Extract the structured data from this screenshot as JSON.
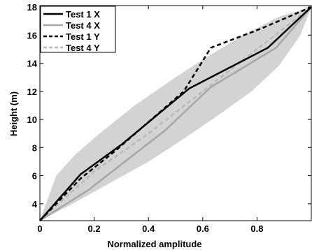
{
  "chart_data": {
    "type": "line",
    "xlabel": "Normalized amplitude",
    "ylabel": "Height (m)",
    "xlim": [
      0,
      1
    ],
    "ylim": [
      2.8,
      18.1
    ],
    "xticks": [
      0,
      0.2,
      0.4,
      0.6,
      0.8
    ],
    "xtick_labels": [
      "0",
      "0.2",
      "0.4",
      "0.6",
      "0.8"
    ],
    "yticks": [
      4,
      6,
      8,
      10,
      12,
      14,
      16,
      18
    ],
    "ytick_labels": [
      "4",
      "6",
      "8",
      "10",
      "12",
      "14",
      "16",
      "18"
    ],
    "grid": false,
    "legend_position": "top-left",
    "band": {
      "color": "#d3d3d3",
      "upper": [
        [
          0,
          2.8
        ],
        [
          0.06,
          6.0
        ],
        [
          0.13,
          7.5
        ],
        [
          0.22,
          9.0
        ],
        [
          0.35,
          11.0
        ],
        [
          0.5,
          13.0
        ],
        [
          0.62,
          14.5
        ],
        [
          0.75,
          16.0
        ],
        [
          0.88,
          17.3
        ],
        [
          1.0,
          18.0
        ]
      ],
      "lower": [
        [
          1.0,
          18.0
        ],
        [
          0.96,
          16.0
        ],
        [
          0.88,
          13.8
        ],
        [
          0.78,
          12.0
        ],
        [
          0.65,
          10.2
        ],
        [
          0.52,
          8.5
        ],
        [
          0.4,
          7.0
        ],
        [
          0.26,
          5.5
        ],
        [
          0.12,
          4.0
        ],
        [
          0.0,
          2.8
        ]
      ]
    },
    "series": [
      {
        "name": "Test 1 X",
        "color": "#000000",
        "dash": "solid",
        "points": [
          [
            0,
            2.8
          ],
          [
            0.15,
            6.1
          ],
          [
            0.3,
            8.2
          ],
          [
            0.55,
            12.2
          ],
          [
            0.84,
            15.1
          ],
          [
            1.0,
            18.0
          ]
        ]
      },
      {
        "name": "Test 4 X",
        "color": "#a6a6a6",
        "dash": "solid",
        "points": [
          [
            0,
            2.8
          ],
          [
            0.18,
            5.0
          ],
          [
            0.46,
            9.2
          ],
          [
            0.63,
            12.3
          ],
          [
            0.87,
            15.1
          ],
          [
            1.0,
            18.0
          ]
        ]
      },
      {
        "name": "Test 1 Y",
        "color": "#000000",
        "dash": "dashed",
        "points": [
          [
            0,
            2.8
          ],
          [
            0.15,
            5.8
          ],
          [
            0.28,
            7.8
          ],
          [
            0.53,
            12.0
          ],
          [
            0.63,
            15.1
          ],
          [
            0.82,
            16.5
          ],
          [
            1.0,
            18.0
          ]
        ]
      },
      {
        "name": "Test 4 Y",
        "color": "#b8b8b8",
        "dash": "dashed",
        "points": [
          [
            0,
            2.8
          ],
          [
            0.2,
            6.3
          ],
          [
            0.4,
            9.0
          ],
          [
            0.6,
            12.0
          ],
          [
            0.8,
            15.0
          ],
          [
            1.0,
            18.0
          ]
        ]
      }
    ]
  }
}
